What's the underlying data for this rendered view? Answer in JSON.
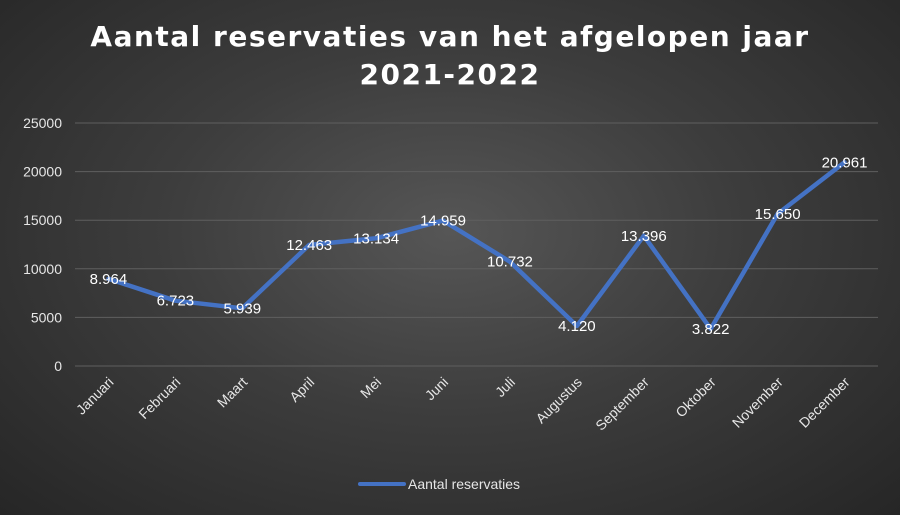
{
  "chart_data": {
    "type": "line",
    "title_lines": [
      "Aantal reservaties van het afgelopen jaar",
      "2021-2022"
    ],
    "xlabel": "",
    "ylabel": "",
    "categories": [
      "Januari",
      "Februari",
      "Maart",
      "April",
      "Mei",
      "Juni",
      "Juli",
      "Augustus",
      "September",
      "Oktober",
      "November",
      "December"
    ],
    "series": [
      {
        "name": "Aantal reservaties",
        "values": [
          8964,
          6723,
          5939,
          12463,
          13134,
          14959,
          10732,
          4120,
          13396,
          3822,
          15650,
          20961
        ],
        "data_labels": [
          "8.964",
          "6.723",
          "5.939",
          "12.463",
          "13.134",
          "14.959",
          "10.732",
          "4.120",
          "13.396",
          "3.822",
          "15.650",
          "20.961"
        ],
        "color": "#4472c4"
      }
    ],
    "ylim": [
      0,
      25000
    ],
    "yticks": [
      0,
      5000,
      10000,
      15000,
      20000,
      25000
    ],
    "ytick_labels": [
      "0",
      "5000",
      "10000",
      "15000",
      "20000",
      "25000"
    ],
    "grid": true,
    "legend_position": "bottom"
  },
  "colors": {
    "gridline": "#5f5f5f",
    "text": "#e6e6e6"
  }
}
